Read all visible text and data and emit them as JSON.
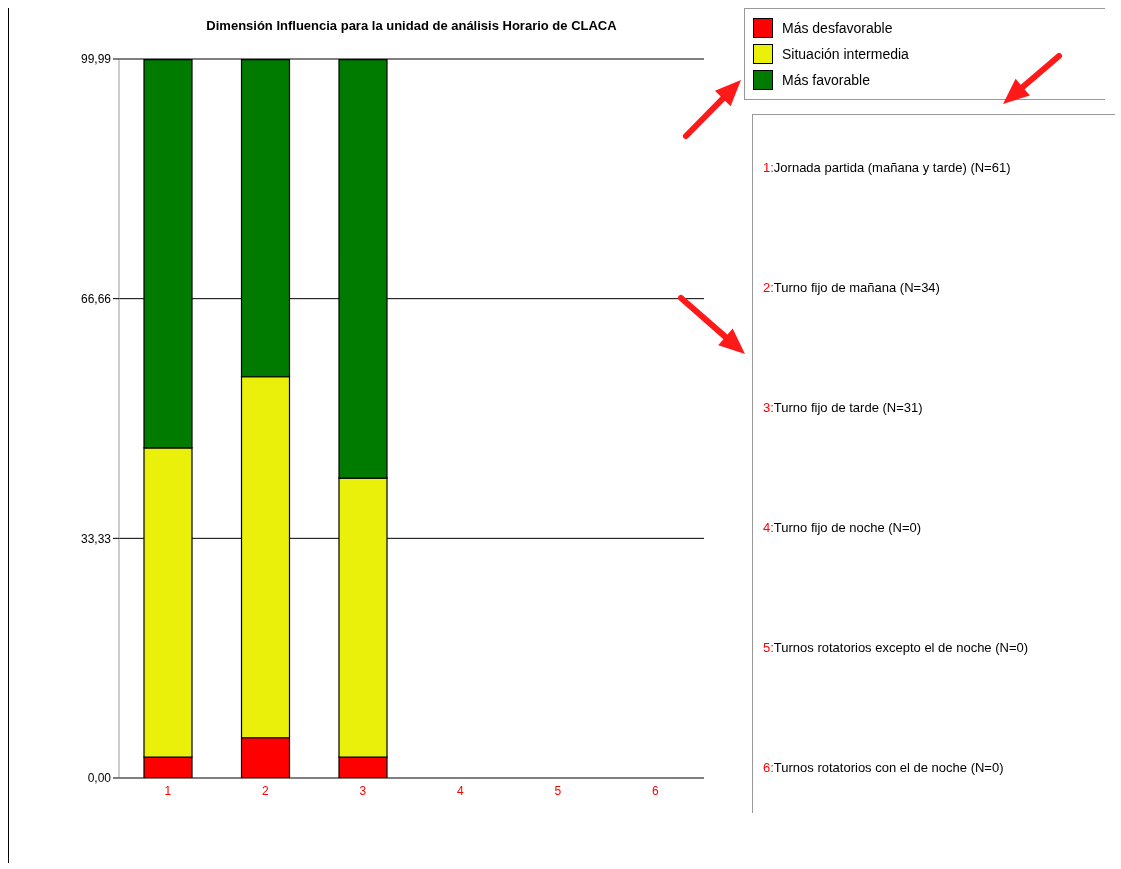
{
  "chart_data": {
    "type": "bar",
    "title": "Dimensión Influencia para la unidad de análisis Horario de CLACA",
    "categories": [
      "1",
      "2",
      "3",
      "4",
      "5",
      "6"
    ],
    "stacked": true,
    "series": [
      {
        "name": "Más desfavorable",
        "color": "#ff0000",
        "values": [
          2.9,
          5.6,
          2.9,
          0,
          0,
          0
        ]
      },
      {
        "name": "Situación intermedia",
        "color": "#eaf00a",
        "values": [
          43.0,
          50.2,
          38.8,
          0,
          0,
          0
        ]
      },
      {
        "name": "Más favorable",
        "color": "#007b00",
        "values": [
          54.0,
          44.1,
          58.2,
          0,
          0,
          0
        ]
      }
    ],
    "ylim": [
      0,
      99.99
    ],
    "yticks": [
      {
        "value": 0,
        "label": "0,00"
      },
      {
        "value": 33.33,
        "label": "33,33"
      },
      {
        "value": 66.66,
        "label": "66,66"
      },
      {
        "value": 99.99,
        "label": "99,99"
      }
    ],
    "grid": "y",
    "legend": "top right",
    "annotations": [
      "1:Jornada partida (mañana y tarde) (N=61)",
      "2:Turno fijo de mañana (N=34)",
      "3:Turno fijo de tarde (N=31)",
      "4:Turno fijo de noche (N=0)",
      "5:Turnos rotatorios excepto el de noche (N=0)",
      "6:Turnos rotatorios con el de noche (N=0)"
    ]
  }
}
